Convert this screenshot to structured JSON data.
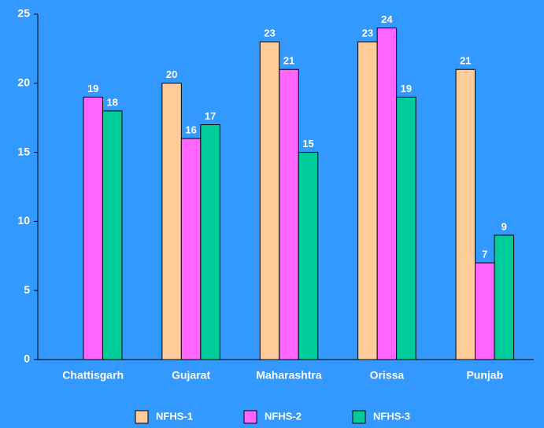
{
  "chart_data": {
    "type": "bar",
    "categories": [
      "Chattisgarh",
      "Gujarat",
      "Maharashtra",
      "Orissa",
      "Punjab"
    ],
    "series": [
      {
        "name": "NFHS-1",
        "color": "#ffcc99",
        "values": [
          null,
          20,
          23,
          23,
          21
        ]
      },
      {
        "name": "NFHS-2",
        "color": "#ff66ff",
        "values": [
          19,
          16,
          21,
          24,
          7
        ]
      },
      {
        "name": "NFHS-3",
        "color": "#00cc99",
        "values": [
          18,
          17,
          15,
          19,
          9
        ]
      }
    ],
    "ylim": [
      0,
      25
    ],
    "yticks": [
      0,
      5,
      10,
      15,
      20,
      25
    ],
    "legend": "bottom",
    "background": "#3399ff"
  }
}
